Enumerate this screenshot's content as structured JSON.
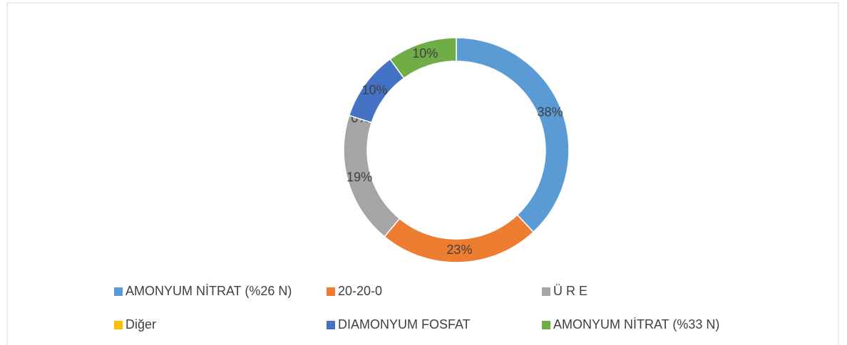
{
  "chart_data": {
    "type": "donut",
    "categories": [
      "AMONYUM NİTRAT (%26 N)",
      "20-20-0",
      "Ü R E",
      "Diğer",
      "DIAMONYUM FOSFAT",
      "AMONYUM NİTRAT (%33 N)"
    ],
    "values": [
      38,
      23,
      19,
      0,
      10,
      10
    ],
    "value_labels": [
      "38%",
      "23%",
      "19%",
      "0%",
      "10%",
      "10%"
    ],
    "colors": [
      "#5b9bd5",
      "#ed7d31",
      "#a5a5a5",
      "#ffc000",
      "#4472c4",
      "#70ad47"
    ],
    "legend": "bottom"
  }
}
